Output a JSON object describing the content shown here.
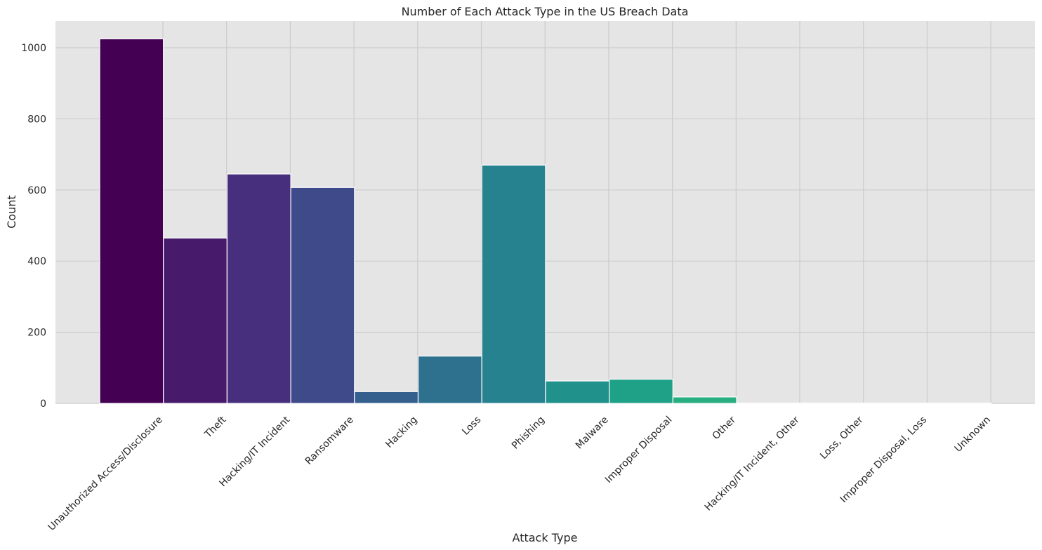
{
  "chart_data": {
    "type": "bar",
    "title": "Number of Each Attack Type in the US Breach Data",
    "xlabel": "Attack Type",
    "ylabel": "Count",
    "ylim": [
      0,
      1075
    ],
    "yticks": [
      0,
      200,
      400,
      600,
      800,
      1000
    ],
    "grid": true,
    "legend": "none",
    "categories": [
      "Unauthorized Access/Disclosure",
      "Theft",
      "Hacking/IT Incident",
      "Ransomware",
      "Hacking",
      "Loss",
      "Phishing",
      "Malware",
      "Improper Disposal",
      "Other",
      "Hacking/IT Incident, Other",
      "Loss, Other",
      "Improper Disposal, Loss",
      "Unknown"
    ],
    "values": [
      1025,
      465,
      645,
      607,
      33,
      133,
      670,
      63,
      68,
      18,
      1,
      1,
      1,
      1
    ],
    "colors": [
      "#440154",
      "#481a6c",
      "#472f7d",
      "#3e4a89",
      "#355f8d",
      "#2d718e",
      "#26828e",
      "#21918c",
      "#1fa188",
      "#28ae80",
      "#3fbc73",
      "#5ec962",
      "#84d44b",
      "#addc30"
    ],
    "background_color": "#e5e5e5",
    "grid_color": "#cccccc",
    "bar_edge_color": "#ffffff"
  }
}
